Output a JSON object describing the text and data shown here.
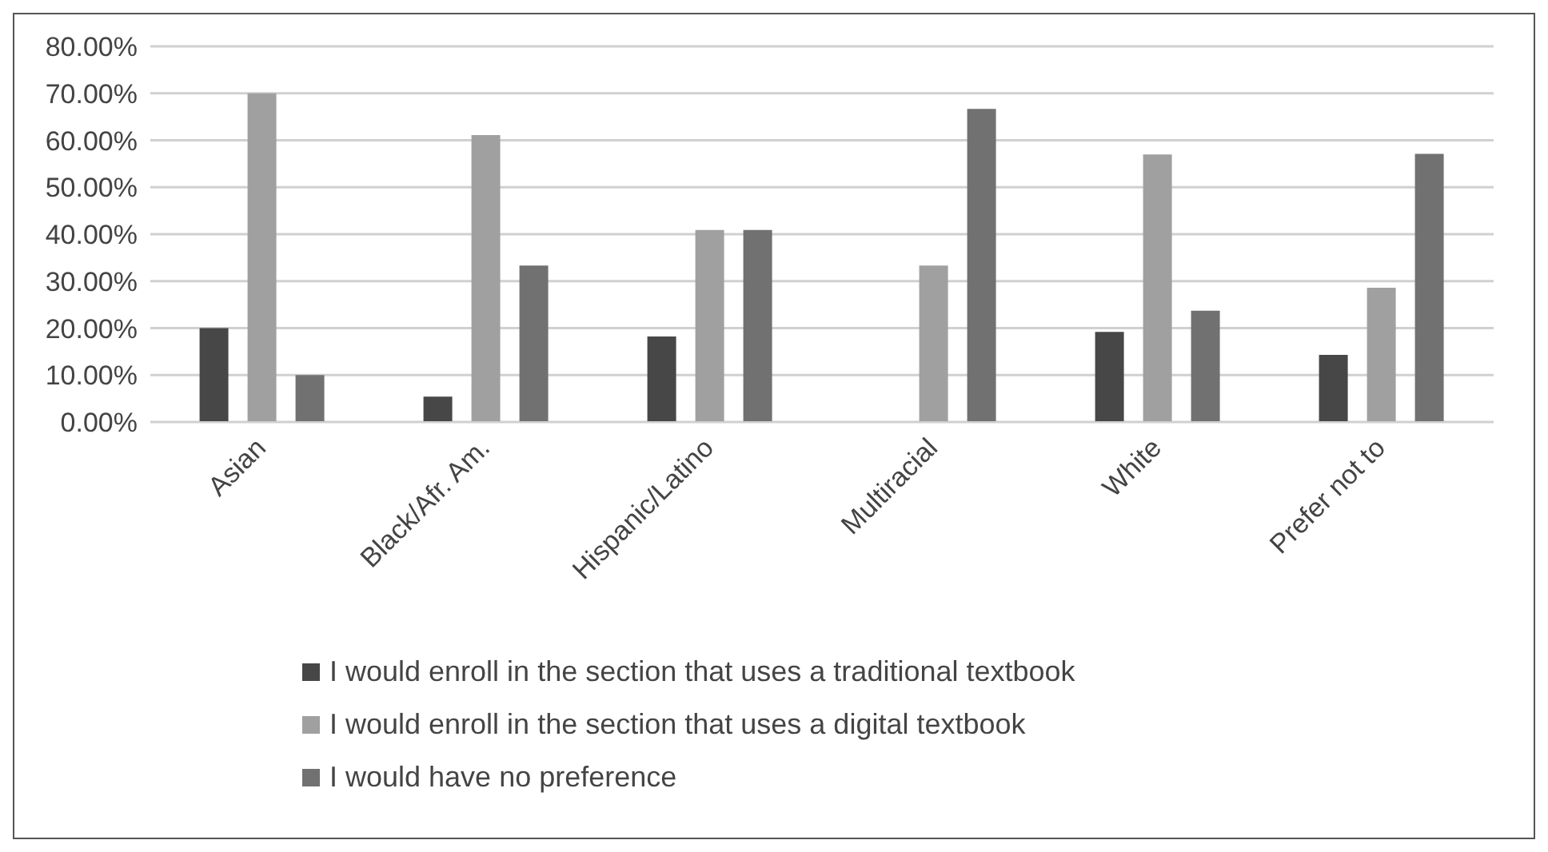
{
  "chart_data": {
    "type": "bar",
    "categories": [
      "Asian",
      "Black/Afr. Am.",
      "Hispanic/Latino",
      "Multiracial",
      "White",
      "Prefer not to"
    ],
    "series": [
      {
        "name": "I would enroll in the section that uses a traditional textbook",
        "color": "#474747",
        "values": [
          20,
          5.4,
          18.2,
          null,
          19.2,
          14.3
        ]
      },
      {
        "name": "I would enroll in the section that uses a digital textbook",
        "color": "#a0a0a0",
        "values": [
          70,
          61.1,
          40.9,
          33.3,
          57,
          28.6
        ]
      },
      {
        "name": "I would have no preference",
        "color": "#717171",
        "values": [
          10,
          33.3,
          40.9,
          66.7,
          23.7,
          57.1
        ]
      }
    ],
    "ylim": [
      0,
      80
    ],
    "yticks": [
      {
        "value": 0,
        "label": "0.00%"
      },
      {
        "value": 10,
        "label": "10.00%"
      },
      {
        "value": 20,
        "label": "20.00%"
      },
      {
        "value": 30,
        "label": "30.00%"
      },
      {
        "value": 40,
        "label": "40.00%"
      },
      {
        "value": 50,
        "label": "50.00%"
      },
      {
        "value": 60,
        "label": "60.00%"
      },
      {
        "value": 70,
        "label": "70.00%"
      },
      {
        "value": 80,
        "label": "80.00%"
      }
    ],
    "grid": "y",
    "legend": "bottom"
  }
}
